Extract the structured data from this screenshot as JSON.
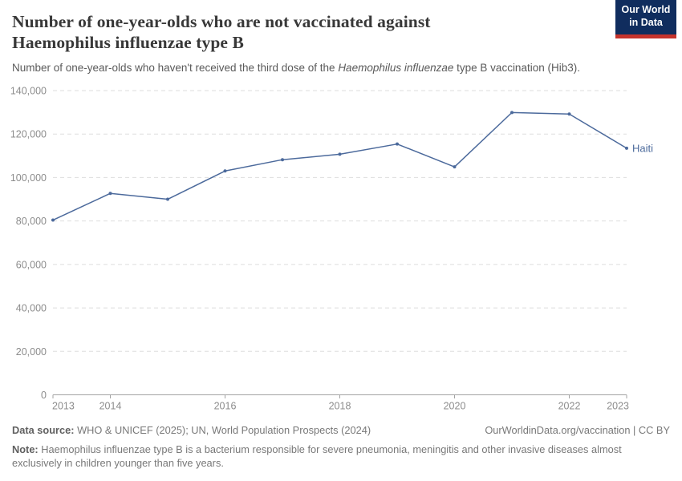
{
  "header": {
    "title_line1": "Number of one-year-olds who are not vaccinated against",
    "title_line2": "Haemophilus influenzae type B",
    "subtitle_prefix": "Number of one-year-olds who haven't received the third dose of the ",
    "subtitle_italic": "Haemophilus influenzae",
    "subtitle_suffix": " type B vaccination (Hib3).",
    "logo": {
      "line1": "Our World",
      "line2": "in Data",
      "background_color": "#102d5e",
      "accent_color": "#c5332c"
    }
  },
  "chart_data": {
    "type": "line",
    "title": "Number of one-year-olds who are not vaccinated against Haemophilus influenzae type B",
    "x": [
      2013,
      2014,
      2015,
      2016,
      2017,
      2018,
      2019,
      2020,
      2021,
      2022,
      2023
    ],
    "series": [
      {
        "name": "Haiti",
        "color": "#4c6a9c",
        "values": [
          80400,
          92700,
          90000,
          103000,
          108200,
          110700,
          115400,
          104900,
          129900,
          129200,
          113500
        ]
      }
    ],
    "ylim": [
      0,
      140000
    ],
    "yticks": [
      0,
      20000,
      40000,
      60000,
      80000,
      100000,
      120000,
      140000
    ],
    "xticks": [
      2013,
      2014,
      2016,
      2018,
      2020,
      2022,
      2023
    ],
    "grid": "horizontal-dashed",
    "legend": "series-end-label",
    "xlabel": "",
    "ylabel": ""
  },
  "footer": {
    "data_source_label": "Data source:",
    "data_source_text": "WHO & UNICEF (2025); UN, World Population Prospects (2024)",
    "link_text": "OurWorldinData.org/vaccination | CC BY",
    "note_label": "Note:",
    "note_text": "Haemophilus influenzae type B is a bacterium responsible for severe pneumonia, meningitis and other invasive diseases almost exclusively in children younger than five years."
  }
}
